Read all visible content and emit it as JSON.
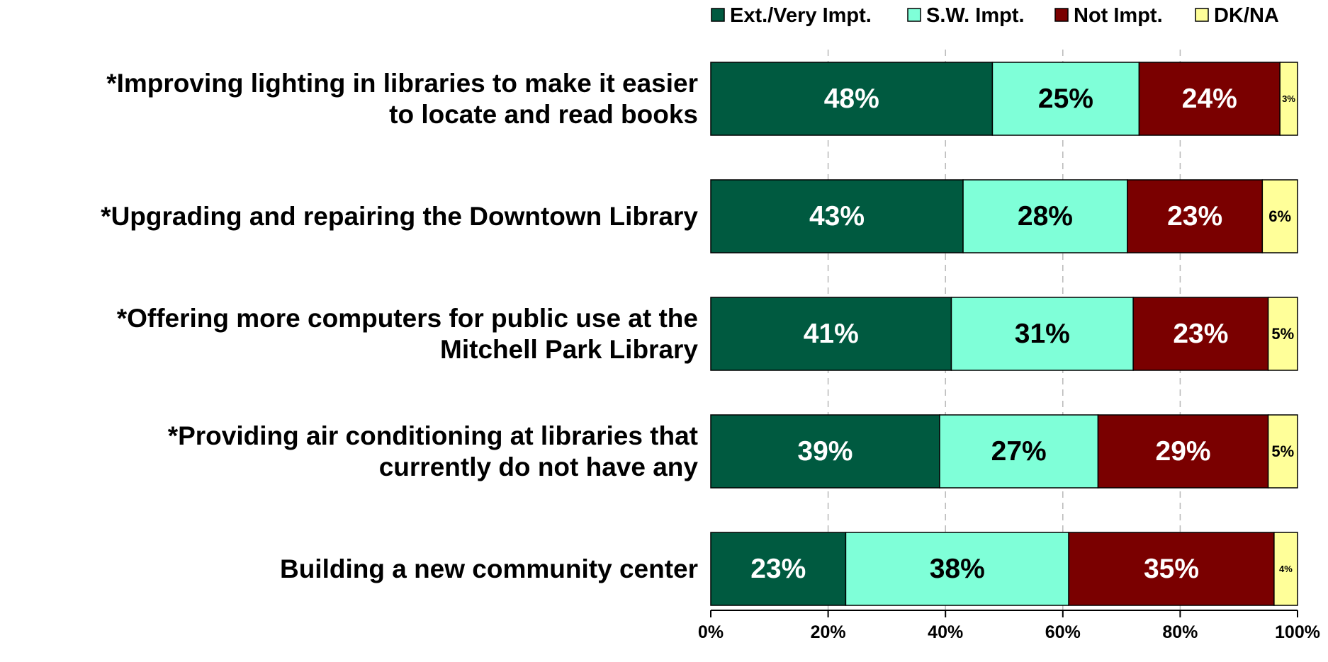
{
  "chart_data": {
    "type": "bar",
    "orientation": "horizontal",
    "stacked": true,
    "categories": [
      [
        "*Improving lighting in libraries to make it easier",
        "to locate and read books"
      ],
      [
        "*Upgrading and repairing the Downtown Library"
      ],
      [
        "*Offering more computers for public use at the",
        "Mitchell Park Library"
      ],
      [
        "*Providing air conditioning at libraries that",
        "currently do not have any"
      ],
      [
        "Building a new community center"
      ]
    ],
    "series": [
      {
        "name": "Ext./Very Impt.",
        "color": "#005a40",
        "label_color": "#ffffff",
        "values": [
          48,
          43,
          41,
          39,
          23
        ],
        "labels": [
          "48%",
          "43%",
          "41%",
          "39%",
          "23%"
        ]
      },
      {
        "name": "S.W. Impt.",
        "color": "#7fffd8",
        "label_color": "#000000",
        "values": [
          25,
          28,
          31,
          27,
          38
        ],
        "labels": [
          "25%",
          "28%",
          "31%",
          "27%",
          "38%"
        ]
      },
      {
        "name": "Not Impt.",
        "color": "#7a0000",
        "label_color": "#ffffff",
        "values": [
          24,
          23,
          23,
          29,
          35
        ],
        "labels": [
          "24%",
          "23%",
          "23%",
          "29%",
          "35%"
        ]
      },
      {
        "name": "DK/NA",
        "color": "#ffff99",
        "label_color": "#000000",
        "values": [
          3,
          6,
          5,
          5,
          4
        ],
        "labels": [
          "3%",
          "6%",
          "5%",
          "5%",
          "4%"
        ]
      }
    ],
    "xlim": [
      0,
      100
    ],
    "x_ticks": [
      0,
      20,
      40,
      60,
      80,
      100
    ],
    "x_tick_labels": [
      "0%",
      "20%",
      "40%",
      "60%",
      "80%",
      "100%"
    ],
    "grid": "vertical dashed",
    "legend_position": "top"
  }
}
